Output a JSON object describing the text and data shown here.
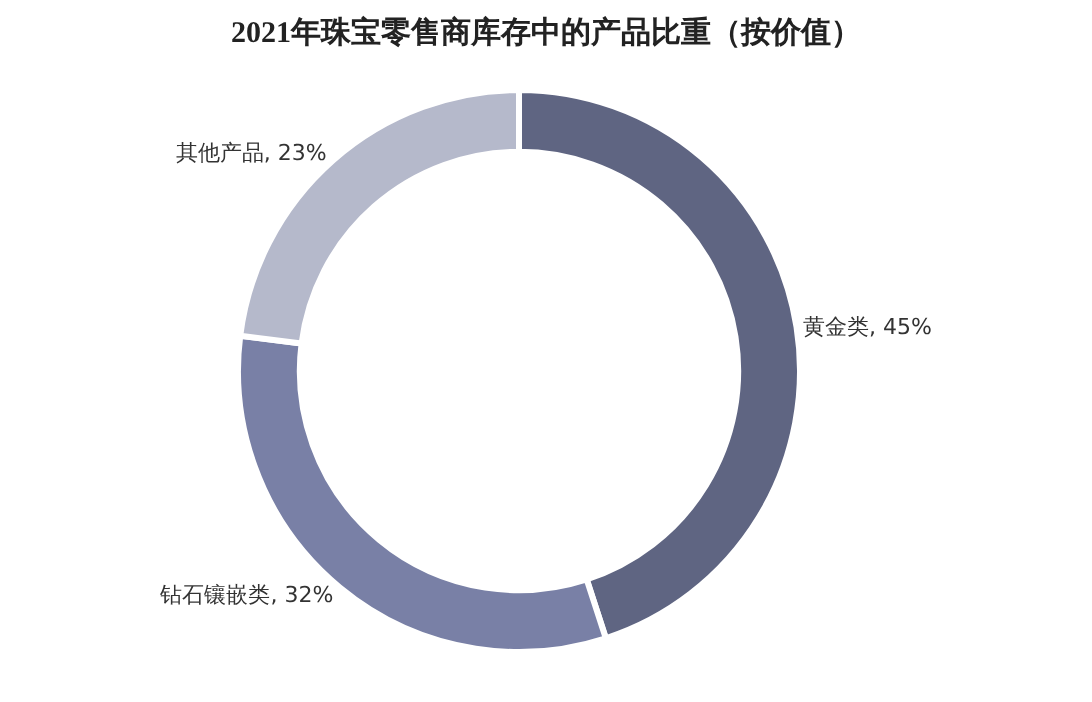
{
  "chart_data": {
    "type": "donut",
    "title": "2021年珠宝零售商库存中的产品比重（按价值）",
    "categories": [
      "黄金类",
      "钻石镶嵌类",
      "其他产品"
    ],
    "values": [
      45,
      32,
      23
    ],
    "colors": [
      "#5f6582",
      "#7980a6",
      "#b5b9cb"
    ],
    "value_labels": [
      "45%",
      "32%",
      "23%"
    ],
    "legend": false
  }
}
